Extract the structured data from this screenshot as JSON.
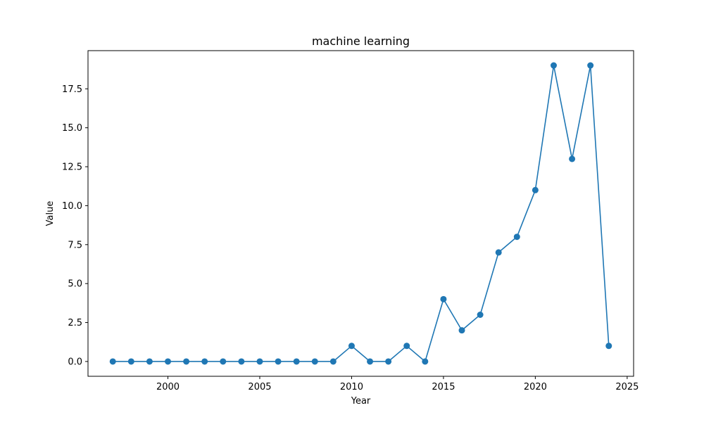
{
  "chart_data": {
    "type": "line",
    "title": "machine learning",
    "xlabel": "Year",
    "ylabel": "Value",
    "x": [
      1997,
      1998,
      1999,
      2000,
      2001,
      2002,
      2003,
      2004,
      2005,
      2006,
      2007,
      2008,
      2009,
      2010,
      2011,
      2012,
      2013,
      2014,
      2015,
      2016,
      2017,
      2018,
      2019,
      2020,
      2021,
      2022,
      2023,
      2024
    ],
    "series": [
      {
        "values": [
          0,
          0,
          0,
          0,
          0,
          0,
          0,
          0,
          0,
          0,
          0,
          0,
          0,
          1,
          0,
          0,
          1,
          0,
          4,
          2,
          3,
          7,
          8,
          11,
          19,
          13,
          19,
          1
        ],
        "color": "#1f77b4",
        "marker": "circle"
      }
    ],
    "xlim": [
      1995.65,
      2025.35
    ],
    "ylim": [
      -0.95,
      19.95
    ],
    "xticks": [
      2000,
      2005,
      2010,
      2015,
      2020,
      2025
    ],
    "yticks": [
      0.0,
      2.5,
      5.0,
      7.5,
      10.0,
      12.5,
      15.0,
      17.5
    ],
    "ytick_labels": [
      "0.0",
      "2.5",
      "5.0",
      "7.5",
      "10.0",
      "12.5",
      "15.0",
      "17.5"
    ],
    "grid": false,
    "legend": "none"
  }
}
